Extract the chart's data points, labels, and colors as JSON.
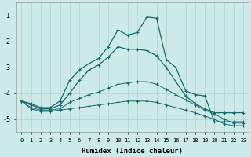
{
  "xlabel": "Humidex (Indice chaleur)",
  "bg_color": "#cceae7",
  "grid_color": "#b0d4d0",
  "line_color": "#1a6b6b",
  "x_values": [
    0,
    1,
    2,
    3,
    4,
    5,
    6,
    7,
    8,
    9,
    10,
    11,
    12,
    13,
    14,
    15,
    16,
    17,
    18,
    19,
    20,
    21,
    22,
    23
  ],
  "line1": [
    -4.3,
    -4.4,
    -4.55,
    -4.55,
    -4.3,
    -3.5,
    -3.1,
    -2.85,
    -2.65,
    -2.2,
    -1.55,
    -1.75,
    -1.65,
    -1.05,
    -1.1,
    -2.7,
    -3.0,
    -3.9,
    -4.05,
    -4.1,
    -5.1,
    -5.1,
    -5.1,
    -5.1
  ],
  "line2": [
    -4.3,
    -4.45,
    -4.6,
    -4.6,
    -4.45,
    -4.0,
    -3.5,
    -3.1,
    -2.9,
    -2.6,
    -2.2,
    -2.3,
    -2.3,
    -2.35,
    -2.55,
    -3.0,
    -3.55,
    -4.1,
    -4.4,
    -4.6,
    -4.75,
    -4.75,
    -4.75,
    -4.75
  ],
  "line3": [
    -4.3,
    -4.55,
    -4.65,
    -4.65,
    -4.6,
    -4.35,
    -4.2,
    -4.05,
    -3.95,
    -3.8,
    -3.65,
    -3.6,
    -3.55,
    -3.55,
    -3.65,
    -3.85,
    -4.05,
    -4.25,
    -4.45,
    -4.65,
    -4.8,
    -5.0,
    -5.15,
    -5.15
  ],
  "line4": [
    -4.3,
    -4.6,
    -4.7,
    -4.7,
    -4.65,
    -4.6,
    -4.55,
    -4.5,
    -4.45,
    -4.4,
    -4.35,
    -4.3,
    -4.3,
    -4.3,
    -4.35,
    -4.45,
    -4.55,
    -4.65,
    -4.75,
    -4.88,
    -5.0,
    -5.18,
    -5.25,
    -5.25
  ],
  "ylim": [
    -5.5,
    -0.5
  ],
  "xlim": [
    -0.5,
    23.5
  ],
  "yticks": [
    -5,
    -4,
    -3,
    -2,
    -1
  ],
  "xtick_labels": [
    "0",
    "1",
    "2",
    "3",
    "4",
    "5",
    "6",
    "7",
    "8",
    "9",
    "10",
    "11",
    "12",
    "13",
    "14",
    "15",
    "16",
    "17",
    "18",
    "19",
    "20",
    "21",
    "22",
    "23"
  ]
}
